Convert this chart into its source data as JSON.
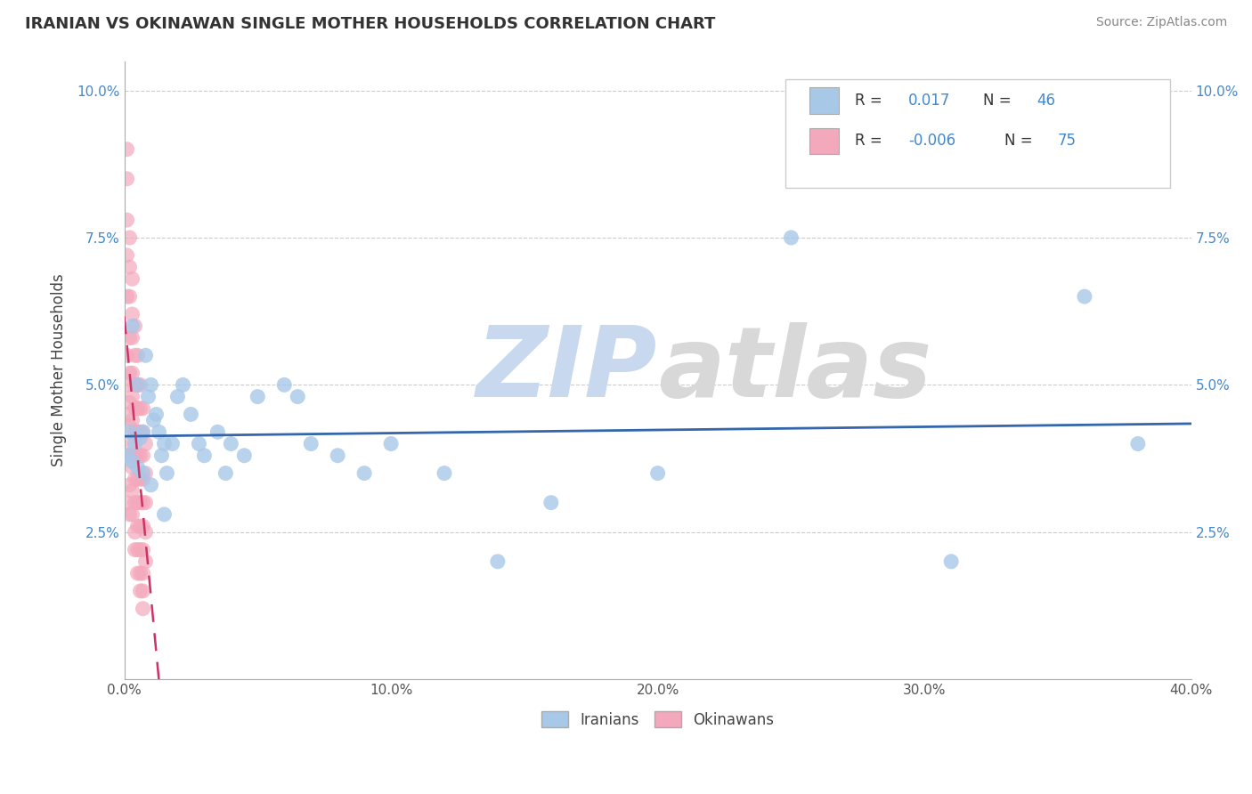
{
  "title": "IRANIAN VS OKINAWAN SINGLE MOTHER HOUSEHOLDS CORRELATION CHART",
  "source": "Source: ZipAtlas.com",
  "ylabel": "Single Mother Households",
  "xlim": [
    0.0,
    0.4
  ],
  "ylim": [
    0.0,
    0.105
  ],
  "xticks": [
    0.0,
    0.05,
    0.1,
    0.15,
    0.2,
    0.25,
    0.3,
    0.35,
    0.4
  ],
  "yticks": [
    0.0,
    0.025,
    0.05,
    0.075,
    0.1
  ],
  "ytick_labels": [
    "",
    "2.5%",
    "5.0%",
    "7.5%",
    "10.0%"
  ],
  "xtick_labels": [
    "0.0%",
    "",
    "10.0%",
    "",
    "20.0%",
    "",
    "30.0%",
    "",
    "40.0%"
  ],
  "legend_iranian_R": "0.017",
  "legend_iranian_N": "46",
  "legend_okinawan_R": "-0.006",
  "legend_okinawan_N": "75",
  "blue_color": "#a8c8e8",
  "pink_color": "#f4a8bc",
  "blue_line_color": "#3366aa",
  "pink_line_color": "#cc3366",
  "watermark": "ZIPatlas",
  "background_color": "#ffffff",
  "iranian_x": [
    0.001,
    0.002,
    0.003,
    0.004,
    0.005,
    0.006,
    0.007,
    0.008,
    0.009,
    0.01,
    0.011,
    0.012,
    0.013,
    0.014,
    0.015,
    0.016,
    0.018,
    0.02,
    0.022,
    0.025,
    0.028,
    0.03,
    0.035,
    0.038,
    0.04,
    0.045,
    0.05,
    0.06,
    0.065,
    0.07,
    0.08,
    0.09,
    0.1,
    0.12,
    0.14,
    0.16,
    0.2,
    0.25,
    0.31,
    0.36,
    0.38,
    0.003,
    0.005,
    0.007,
    0.01,
    0.015
  ],
  "iranian_y": [
    0.038,
    0.042,
    0.037,
    0.04,
    0.036,
    0.041,
    0.035,
    0.055,
    0.048,
    0.05,
    0.044,
    0.045,
    0.042,
    0.038,
    0.04,
    0.035,
    0.04,
    0.048,
    0.05,
    0.045,
    0.04,
    0.038,
    0.042,
    0.035,
    0.04,
    0.038,
    0.048,
    0.05,
    0.048,
    0.04,
    0.038,
    0.035,
    0.04,
    0.035,
    0.02,
    0.03,
    0.035,
    0.075,
    0.02,
    0.065,
    0.04,
    0.06,
    0.05,
    0.042,
    0.033,
    0.028
  ],
  "okinawan_x": [
    0.001,
    0.001,
    0.001,
    0.001,
    0.001,
    0.001,
    0.001,
    0.001,
    0.001,
    0.001,
    0.002,
    0.002,
    0.002,
    0.002,
    0.002,
    0.002,
    0.002,
    0.002,
    0.002,
    0.002,
    0.003,
    0.003,
    0.003,
    0.003,
    0.003,
    0.003,
    0.003,
    0.003,
    0.003,
    0.003,
    0.004,
    0.004,
    0.004,
    0.004,
    0.004,
    0.004,
    0.004,
    0.004,
    0.004,
    0.004,
    0.005,
    0.005,
    0.005,
    0.005,
    0.005,
    0.005,
    0.005,
    0.005,
    0.005,
    0.005,
    0.006,
    0.006,
    0.006,
    0.006,
    0.006,
    0.006,
    0.006,
    0.006,
    0.006,
    0.006,
    0.007,
    0.007,
    0.007,
    0.007,
    0.007,
    0.007,
    0.007,
    0.007,
    0.007,
    0.007,
    0.008,
    0.008,
    0.008,
    0.008,
    0.008
  ],
  "okinawan_y": [
    0.09,
    0.085,
    0.078,
    0.072,
    0.065,
    0.055,
    0.05,
    0.045,
    0.038,
    0.03,
    0.075,
    0.07,
    0.065,
    0.058,
    0.052,
    0.047,
    0.043,
    0.038,
    0.033,
    0.028,
    0.068,
    0.062,
    0.058,
    0.052,
    0.048,
    0.044,
    0.04,
    0.036,
    0.032,
    0.028,
    0.06,
    0.055,
    0.05,
    0.046,
    0.042,
    0.038,
    0.034,
    0.03,
    0.025,
    0.022,
    0.055,
    0.05,
    0.046,
    0.042,
    0.038,
    0.034,
    0.03,
    0.026,
    0.022,
    0.018,
    0.05,
    0.046,
    0.042,
    0.038,
    0.034,
    0.03,
    0.026,
    0.022,
    0.018,
    0.015,
    0.046,
    0.042,
    0.038,
    0.034,
    0.03,
    0.026,
    0.022,
    0.018,
    0.015,
    0.012,
    0.04,
    0.035,
    0.03,
    0.025,
    0.02
  ]
}
